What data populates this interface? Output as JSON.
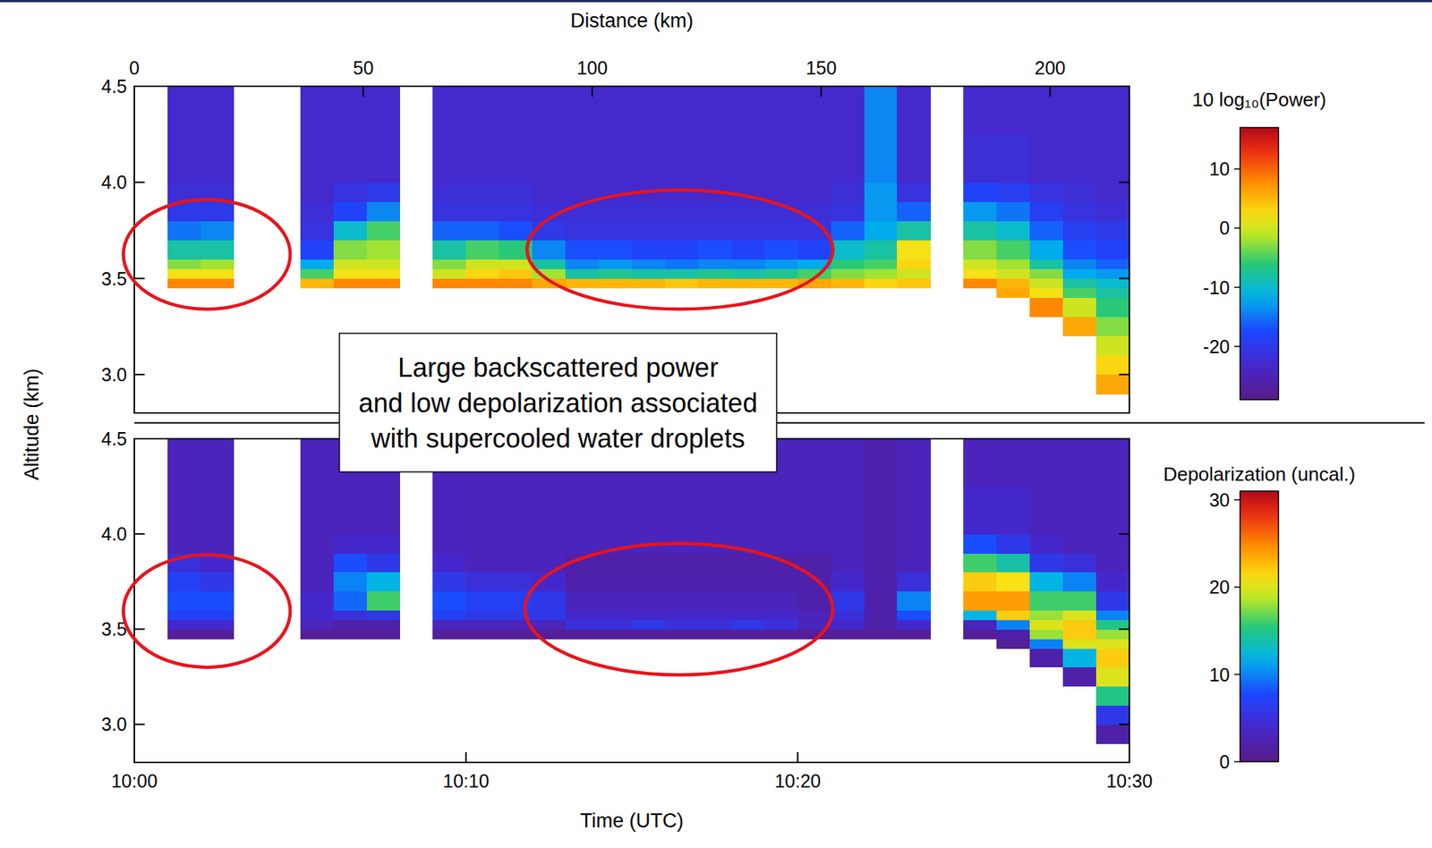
{
  "chart_data": [
    {
      "type": "heatmap",
      "x2label": "Distance (km)",
      "x2lim": [
        0,
        217.3
      ],
      "x2ticks": [
        0,
        50,
        100,
        150,
        200
      ],
      "ylabel": "Altitude (km)",
      "xlim": [
        0,
        30
      ],
      "ylim": [
        2.8,
        4.5
      ],
      "yticks": [
        {
          "value": 3,
          "label": "3.0"
        },
        3.5,
        {
          "value": 4,
          "label": "4.0"
        },
        4.5
      ],
      "x_edges": [
        0,
        1,
        2,
        3,
        4,
        5,
        6,
        7,
        8,
        9,
        10,
        11,
        12,
        13,
        14,
        15,
        16,
        17,
        18,
        19,
        20,
        21,
        22,
        23,
        24,
        25,
        26,
        27,
        28,
        29,
        30
      ],
      "y_edges": [
        2.8,
        2.9,
        3.0,
        3.1,
        3.2,
        3.3,
        3.4,
        3.45,
        3.5,
        3.55,
        3.6,
        3.7,
        3.8,
        3.9,
        4.0,
        4.25,
        4.5
      ],
      "values": [
        null,
        [
          null,
          null,
          null,
          null,
          null,
          null,
          null,
          8,
          2,
          -3,
          -8,
          -15,
          -20,
          -22,
          -23,
          -23
        ],
        [
          null,
          null,
          null,
          null,
          null,
          null,
          null,
          8,
          2,
          -2,
          -8,
          -14,
          -20,
          -22,
          -23,
          -23
        ],
        null,
        null,
        [
          null,
          null,
          null,
          null,
          null,
          null,
          null,
          5,
          -5,
          -12,
          -18,
          -21,
          -22,
          -23,
          -23,
          -23
        ],
        [
          null,
          null,
          null,
          null,
          null,
          null,
          null,
          8,
          2,
          0,
          -3,
          -10,
          -18,
          -21,
          -23,
          -23
        ],
        [
          null,
          null,
          null,
          null,
          null,
          null,
          null,
          8,
          2,
          0,
          -2,
          -5,
          -14,
          -20,
          -23,
          -23
        ],
        null,
        [
          null,
          null,
          null,
          null,
          null,
          null,
          null,
          8,
          0,
          -3,
          -8,
          -16,
          -21,
          -22,
          -23,
          -23
        ],
        [
          null,
          null,
          null,
          null,
          null,
          null,
          null,
          8,
          3,
          0,
          -5,
          -16,
          -21,
          -22,
          -23,
          -23
        ],
        [
          null,
          null,
          null,
          null,
          null,
          null,
          null,
          8,
          4,
          0,
          -6,
          -17,
          -21,
          -22,
          -23,
          -23
        ],
        [
          null,
          null,
          null,
          null,
          null,
          null,
          null,
          6,
          -2,
          -8,
          -14,
          -20,
          -22,
          -23,
          -23,
          -23
        ],
        [
          null,
          null,
          null,
          null,
          null,
          null,
          null,
          5,
          -8,
          -14,
          -17,
          -21,
          -22,
          -23,
          -23,
          -23
        ],
        [
          null,
          null,
          null,
          null,
          null,
          null,
          null,
          5,
          -7,
          -13,
          -17,
          -21,
          -22,
          -23,
          -23,
          -23
        ],
        [
          null,
          null,
          null,
          null,
          null,
          null,
          null,
          5,
          -8,
          -14,
          -18,
          -21,
          -22,
          -23,
          -23,
          -23
        ],
        [
          null,
          null,
          null,
          null,
          null,
          null,
          null,
          4,
          -8,
          -15,
          -18,
          -21,
          -22,
          -23,
          -23,
          -23
        ],
        [
          null,
          null,
          null,
          null,
          null,
          null,
          null,
          5,
          -7,
          -14,
          -17,
          -21,
          -22,
          -23,
          -23,
          -23
        ],
        [
          null,
          null,
          null,
          null,
          null,
          null,
          null,
          5,
          -8,
          -14,
          -18,
          -21,
          -22,
          -23,
          -23,
          -23
        ],
        [
          null,
          null,
          null,
          null,
          null,
          null,
          null,
          5,
          -7,
          -13,
          -17,
          -21,
          -22,
          -23,
          -23,
          -23
        ],
        [
          null,
          null,
          null,
          null,
          null,
          null,
          null,
          6,
          -5,
          -12,
          -18,
          -21,
          -22,
          -23,
          -23,
          -23
        ],
        [
          null,
          null,
          null,
          null,
          null,
          null,
          null,
          5,
          -3,
          -6,
          -10,
          -16,
          -21,
          -22,
          -23,
          -23
        ],
        [
          null,
          null,
          null,
          null,
          null,
          null,
          null,
          3,
          -2,
          -5,
          -8,
          -12,
          -13,
          -13,
          -14,
          -14
        ],
        [
          null,
          null,
          null,
          null,
          null,
          null,
          null,
          4,
          0,
          3,
          2,
          -8,
          -16,
          -21,
          -23,
          -23
        ],
        null,
        [
          null,
          null,
          null,
          null,
          null,
          null,
          null,
          8,
          2,
          0,
          -3,
          -8,
          -13,
          -18,
          -22,
          -23
        ],
        [
          null,
          null,
          null,
          null,
          null,
          null,
          6,
          5,
          0,
          -2,
          -5,
          -10,
          -15,
          -19,
          -22,
          -23
        ],
        [
          null,
          null,
          null,
          null,
          null,
          8,
          2,
          0,
          -3,
          -8,
          -12,
          -16,
          -19,
          -21,
          -23,
          -23
        ],
        [
          null,
          null,
          null,
          null,
          6,
          0,
          -5,
          -8,
          -12,
          -14,
          -17,
          -19,
          -21,
          -22,
          -23,
          -23
        ],
        [
          null,
          6,
          3,
          0,
          -3,
          -6,
          -8,
          -10,
          -13,
          -16,
          -18,
          -20,
          -22,
          -23,
          -23,
          -23
        ]
      ],
      "colorbar": {
        "label": "10 log₁₀(Power)",
        "range": [
          -29,
          17
        ],
        "ticks": [
          -20,
          -10,
          0,
          10
        ]
      },
      "highlights": [
        {
          "x": [
            -0.33,
            4.7
          ],
          "y": [
            3.34,
            3.91
          ]
        },
        {
          "x": [
            11.84,
            21.06
          ],
          "y": [
            3.34,
            3.96
          ]
        }
      ],
      "annotation": [
        "Large backscattered power",
        "and low depolarization associated",
        "with supercooled water droplets"
      ]
    },
    {
      "type": "heatmap",
      "xlabel": "Time (UTC)",
      "xlim": [
        0,
        30
      ],
      "xticks": [
        {
          "value": 0,
          "label": "10:00"
        },
        {
          "value": 10,
          "label": "10:10"
        },
        {
          "value": 20,
          "label": "10:20"
        },
        {
          "value": 30,
          "label": "10:30"
        }
      ],
      "ylim": [
        2.8,
        4.5
      ],
      "yticks": [
        {
          "value": 3,
          "label": "3.0"
        },
        3.5,
        {
          "value": 4,
          "label": "4.0"
        },
        4.5
      ],
      "x_edges": [
        0,
        1,
        2,
        3,
        4,
        5,
        6,
        7,
        8,
        9,
        10,
        11,
        12,
        13,
        14,
        15,
        16,
        17,
        18,
        19,
        20,
        21,
        22,
        23,
        24,
        25,
        26,
        27,
        28,
        29,
        30
      ],
      "y_edges": [
        2.8,
        2.9,
        3.0,
        3.1,
        3.2,
        3.3,
        3.4,
        3.45,
        3.5,
        3.55,
        3.6,
        3.7,
        3.8,
        3.9,
        4.0,
        4.25,
        4.5
      ],
      "values": [
        null,
        [
          null,
          null,
          null,
          null,
          null,
          null,
          null,
          1,
          4,
          7,
          8,
          7,
          5,
          3,
          3,
          3
        ],
        [
          null,
          null,
          null,
          null,
          null,
          null,
          null,
          1,
          4,
          7,
          8,
          6,
          4,
          3,
          3,
          3
        ],
        null,
        null,
        [
          null,
          null,
          null,
          null,
          null,
          null,
          null,
          1,
          3,
          4,
          4,
          3,
          3,
          3,
          3,
          3
        ],
        [
          null,
          null,
          null,
          null,
          null,
          null,
          null,
          1,
          2,
          5,
          9,
          10,
          8,
          4,
          3,
          3
        ],
        [
          null,
          null,
          null,
          null,
          null,
          null,
          null,
          1,
          2,
          6,
          16,
          12,
          6,
          4,
          3,
          3
        ],
        null,
        [
          null,
          null,
          null,
          null,
          null,
          null,
          null,
          1,
          3,
          7,
          8,
          6,
          4,
          3,
          3,
          3
        ],
        [
          null,
          null,
          null,
          null,
          null,
          null,
          null,
          1,
          3,
          6,
          7,
          5,
          3,
          3,
          3,
          3
        ],
        [
          null,
          null,
          null,
          null,
          null,
          null,
          null,
          1,
          3,
          6,
          7,
          5,
          3,
          3,
          3,
          3
        ],
        [
          null,
          null,
          null,
          null,
          null,
          null,
          null,
          1,
          3,
          6,
          6,
          4,
          3,
          3,
          3,
          3
        ],
        [
          null,
          null,
          null,
          null,
          null,
          null,
          null,
          1,
          5,
          4,
          3,
          2,
          2,
          3,
          3,
          3
        ],
        [
          null,
          null,
          null,
          null,
          null,
          null,
          null,
          1,
          5,
          4,
          3,
          2,
          2,
          3,
          3,
          3
        ],
        [
          null,
          null,
          null,
          null,
          null,
          null,
          null,
          1,
          6,
          4,
          3,
          2,
          2,
          3,
          3,
          3
        ],
        [
          null,
          null,
          null,
          null,
          null,
          null,
          null,
          1,
          5,
          4,
          3,
          2,
          2,
          3,
          3,
          3
        ],
        [
          null,
          null,
          null,
          null,
          null,
          null,
          null,
          1,
          5,
          4,
          3,
          2,
          2,
          3,
          3,
          3
        ],
        [
          null,
          null,
          null,
          null,
          null,
          null,
          null,
          1,
          6,
          4,
          3,
          2,
          2,
          3,
          3,
          3
        ],
        [
          null,
          null,
          null,
          null,
          null,
          null,
          null,
          1,
          5,
          4,
          3,
          2,
          2,
          3,
          3,
          3
        ],
        [
          null,
          null,
          null,
          null,
          null,
          null,
          null,
          1,
          3,
          3,
          2,
          2,
          2,
          3,
          3,
          3
        ],
        [
          null,
          null,
          null,
          null,
          null,
          null,
          null,
          1,
          4,
          5,
          6,
          4,
          3,
          3,
          3,
          3
        ],
        [
          null,
          null,
          null,
          null,
          null,
          null,
          null,
          1,
          2,
          2,
          2,
          2,
          2,
          2,
          2,
          2
        ],
        [
          null,
          null,
          null,
          null,
          null,
          null,
          null,
          1,
          4,
          8,
          10,
          5,
          3,
          3,
          3,
          3
        ],
        null,
        [
          null,
          null,
          null,
          null,
          null,
          null,
          null,
          1,
          3,
          12,
          24,
          22,
          16,
          8,
          4,
          3
        ],
        [
          null,
          null,
          null,
          null,
          null,
          null,
          1,
          2,
          10,
          22,
          24,
          21,
          14,
          6,
          4,
          3
        ],
        [
          null,
          null,
          null,
          null,
          null,
          2,
          10,
          18,
          20,
          18,
          16,
          12,
          6,
          4,
          3,
          3
        ],
        [
          null,
          null,
          null,
          null,
          2,
          12,
          20,
          22,
          22,
          20,
          16,
          10,
          5,
          3,
          3,
          3
        ],
        [
          null,
          2,
          6,
          15,
          20,
          22,
          20,
          18,
          15,
          10,
          6,
          4,
          3,
          3,
          3,
          3
        ]
      ],
      "colorbar": {
        "label": "Depolarization (uncal.)",
        "range": [
          0,
          31
        ],
        "ticks": [
          0,
          10,
          20,
          30
        ]
      },
      "highlights": [
        {
          "x": [
            -0.33,
            4.7
          ],
          "y": [
            3.3,
            3.89
          ]
        },
        {
          "x": [
            11.78,
            21.06
          ],
          "y": [
            3.26,
            3.95
          ]
        }
      ]
    }
  ]
}
